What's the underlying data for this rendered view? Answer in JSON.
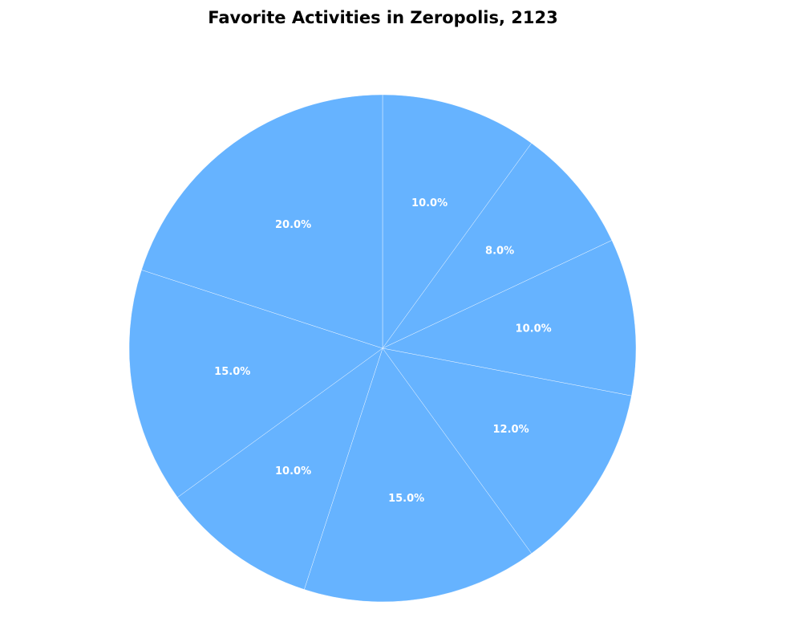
{
  "chart_data": {
    "type": "pie",
    "title": "Favorite Activities in Zeropolis, 2123",
    "slice_color": "#66b3ff",
    "edge_color": "#ffffff",
    "start": "top",
    "direction": "clockwise",
    "values": [
      10.0,
      8.0,
      10.0,
      12.0,
      15.0,
      10.0,
      15.0,
      20.0
    ],
    "labels": [
      "10.0%",
      "8.0%",
      "10.0%",
      "12.0%",
      "15.0%",
      "10.0%",
      "15.0%",
      "20.0%"
    ]
  }
}
